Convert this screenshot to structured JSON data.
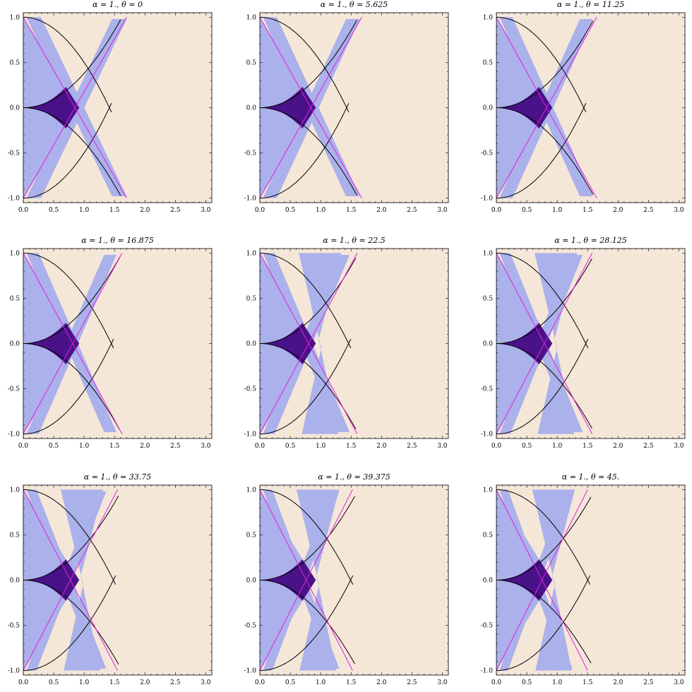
{
  "chart_data": [
    {
      "type": "region_plot",
      "title": "α = 1., θ = 0",
      "theta": 0
    },
    {
      "type": "region_plot",
      "title": "α = 1., θ = 5.625",
      "theta": 5.625
    },
    {
      "type": "region_plot",
      "title": "α = 1., θ = 11.25",
      "theta": 11.25
    },
    {
      "type": "region_plot",
      "title": "α = 1., θ = 16.875",
      "theta": 16.875
    },
    {
      "type": "region_plot",
      "title": "α = 1., θ = 22.5",
      "theta": 22.5
    },
    {
      "type": "region_plot",
      "title": "α = 1., θ = 28.125",
      "theta": 28.125
    },
    {
      "type": "region_plot",
      "title": "α = 1., θ = 33.75",
      "theta": 33.75
    },
    {
      "type": "region_plot",
      "title": "α = 1., θ = 39.375",
      "theta": 39.375
    },
    {
      "type": "region_plot",
      "title": "α = 1., θ = 45.",
      "theta": 45
    }
  ],
  "axes": {
    "xlim": [
      0,
      3.1
    ],
    "ylim": [
      -1.05,
      1.05
    ],
    "xticks": [
      "0.0",
      "0.5",
      "1.0",
      "1.5",
      "2.0",
      "2.5",
      "3.0"
    ],
    "xtick_values": [
      0,
      0.5,
      1.0,
      1.5,
      2.0,
      2.5,
      3.0
    ],
    "yticks": [
      "1.0",
      "0.5",
      "0.0",
      "-0.5",
      "-1.0"
    ],
    "ytick_values": [
      1.0,
      0.5,
      0.0,
      -0.5,
      -1.0
    ]
  },
  "colors": {
    "background": "#f5e7d8",
    "light_region": "#abb1ea",
    "dark_region": "#4a1288",
    "black_curve": "#000000",
    "magenta_curve": "#e020e0"
  }
}
